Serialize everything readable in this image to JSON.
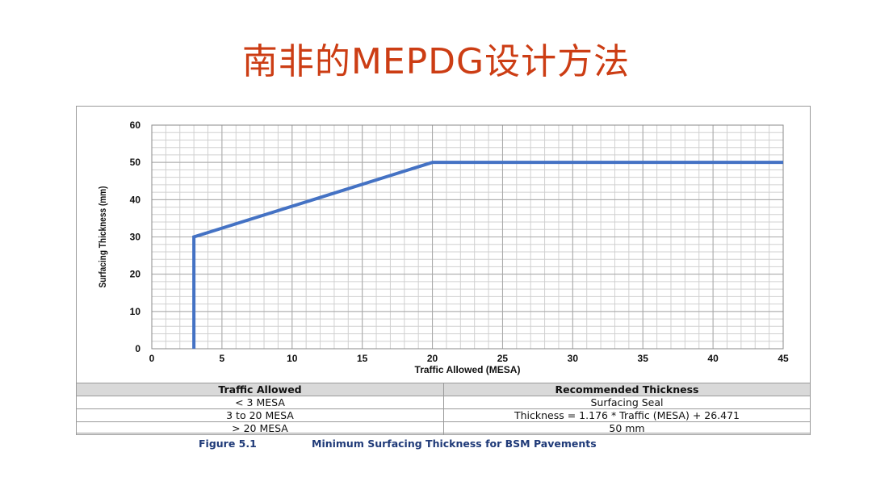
{
  "slide": {
    "title": "南非的MEPDG设计方法"
  },
  "chart_data": {
    "type": "line",
    "xlabel": "Traffic Allowed (MESA)",
    "ylabel": "Surfacing Thickness (mm)",
    "xlim": [
      0,
      45
    ],
    "ylim": [
      0,
      60
    ],
    "x_ticks": [
      0,
      5,
      10,
      15,
      20,
      25,
      30,
      35,
      40,
      45
    ],
    "y_ticks": [
      0,
      10,
      20,
      30,
      40,
      50,
      60
    ],
    "grid": true,
    "series": [
      {
        "color": "#4472c4",
        "x": [
          3,
          3,
          20,
          45
        ],
        "y": [
          0,
          30,
          50,
          50
        ]
      }
    ]
  },
  "table": {
    "headers": [
      "Traffic Allowed",
      "Recommended Thickness"
    ],
    "rows": [
      [
        "< 3 MESA",
        "Surfacing Seal"
      ],
      [
        "3 to 20 MESA",
        "Thickness = 1.176 * Traffic (MESA) + 26.471"
      ],
      [
        "> 20 MESA",
        "50 mm"
      ]
    ]
  },
  "caption": {
    "label": "Figure 5.1",
    "text": "Minimum Surfacing Thickness for BSM Pavements"
  }
}
